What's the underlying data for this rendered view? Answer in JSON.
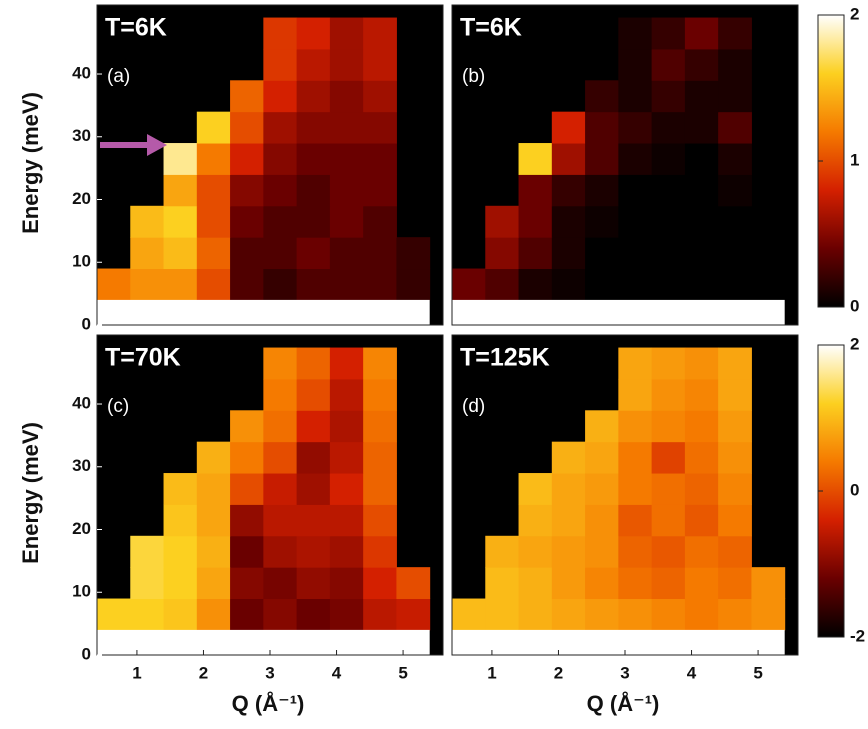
{
  "chart_data": [
    {
      "type": "heatmap",
      "title": "T=6K",
      "annotation": "(a)",
      "ylabel": "Energy (meV)",
      "x": [
        0.65,
        1.15,
        1.65,
        2.15,
        2.65,
        3.15,
        3.65,
        4.15,
        4.65,
        5.15
      ],
      "y": [
        6.5,
        11.5,
        16.5,
        21.5,
        26.5,
        31.5,
        36.5,
        41.5,
        46.5
      ],
      "z": [
        [
          1.2,
          1.3,
          1.3,
          1.0,
          0.3,
          0.2,
          0.3,
          0.3,
          0.3,
          0.2
        ],
        [
          null,
          1.4,
          1.5,
          1.1,
          0.3,
          0.3,
          0.4,
          0.3,
          0.3,
          0.2
        ],
        [
          null,
          1.5,
          1.6,
          1.0,
          0.4,
          0.3,
          0.3,
          0.4,
          0.3,
          null
        ],
        [
          null,
          null,
          1.4,
          1.0,
          0.5,
          0.4,
          0.3,
          0.4,
          0.4,
          null
        ],
        [
          null,
          null,
          1.8,
          1.2,
          0.8,
          0.5,
          0.4,
          0.4,
          0.4,
          null
        ],
        [
          null,
          null,
          null,
          1.6,
          1.0,
          0.6,
          0.5,
          0.5,
          0.5,
          null
        ],
        [
          null,
          null,
          null,
          null,
          1.1,
          0.8,
          0.6,
          0.5,
          0.6,
          null
        ],
        [
          null,
          null,
          null,
          null,
          null,
          0.9,
          0.7,
          0.6,
          0.7,
          null
        ],
        [
          null,
          null,
          null,
          null,
          null,
          0.9,
          0.8,
          0.6,
          0.7,
          null
        ]
      ],
      "xlim": [
        0.4,
        5.6
      ],
      "ylim": [
        0,
        51
      ],
      "yticks": [
        0,
        10,
        20,
        30,
        40
      ],
      "zlim": [
        0,
        2
      ],
      "zticks": [
        0,
        1,
        2
      ],
      "colorbar": true,
      "arrow_color": "#b55aa9",
      "colormap": [
        "#000000",
        "#6a0000",
        "#d42000",
        "#f57a00",
        "#fcd020",
        "#ffffff"
      ]
    },
    {
      "type": "heatmap",
      "title": "T=6K",
      "annotation": "(b)",
      "x": [
        0.65,
        1.15,
        1.65,
        2.15,
        2.65,
        3.15,
        3.65,
        4.15,
        4.65,
        5.15
      ],
      "y": [
        6.5,
        11.5,
        16.5,
        21.5,
        26.5,
        31.5,
        36.5,
        41.5,
        46.5
      ],
      "z": [
        [
          0.4,
          0.3,
          0.1,
          0.05,
          0,
          0,
          0,
          0,
          0,
          0
        ],
        [
          null,
          0.5,
          0.3,
          0.1,
          0,
          0,
          0,
          0,
          0,
          0
        ],
        [
          null,
          0.6,
          0.4,
          0.1,
          0.05,
          0,
          0,
          0,
          0,
          null
        ],
        [
          null,
          null,
          0.4,
          0.2,
          0.1,
          0,
          0,
          0,
          0.05,
          null
        ],
        [
          null,
          null,
          1.6,
          0.6,
          0.3,
          0.1,
          0.05,
          0,
          0.1,
          null
        ],
        [
          null,
          null,
          null,
          0.8,
          0.3,
          0.2,
          0.1,
          0.1,
          0.3,
          null
        ],
        [
          null,
          null,
          null,
          null,
          0.2,
          0.1,
          0.2,
          0.1,
          0.1,
          null
        ],
        [
          null,
          null,
          null,
          null,
          null,
          0.1,
          0.3,
          0.2,
          0.1,
          null
        ],
        [
          null,
          null,
          null,
          null,
          null,
          0.1,
          0.2,
          0.4,
          0.2,
          null
        ]
      ],
      "xlim": [
        0.4,
        5.6
      ],
      "ylim": [
        0,
        51
      ],
      "zlim": [
        0,
        2
      ],
      "colormap": [
        "#000000",
        "#6a0000",
        "#d42000",
        "#f57a00",
        "#fcd020",
        "#ffffff"
      ]
    },
    {
      "type": "heatmap",
      "title": "T=70K",
      "annotation": "(c)",
      "ylabel": "Energy (meV)",
      "xlabel": "Q (Å⁻¹)",
      "x": [
        0.65,
        1.15,
        1.65,
        2.15,
        2.65,
        3.15,
        3.65,
        4.15,
        4.65,
        5.15
      ],
      "y": [
        6.5,
        11.5,
        16.5,
        21.5,
        26.5,
        31.5,
        36.5,
        41.5,
        46.5
      ],
      "z": [
        [
          1.2,
          1.2,
          1.1,
          0.6,
          -1.2,
          -1.0,
          -1.2,
          -1.1,
          -0.6,
          -0.5
        ],
        [
          null,
          1.3,
          1.2,
          0.8,
          -1.0,
          -1.1,
          -0.9,
          -1.0,
          -0.4,
          0.0
        ],
        [
          null,
          1.3,
          1.2,
          0.9,
          -1.2,
          -0.8,
          -0.7,
          -0.8,
          -0.2,
          null
        ],
        [
          null,
          null,
          1.1,
          0.8,
          -0.9,
          -0.6,
          -0.6,
          -0.6,
          0.0,
          null
        ],
        [
          null,
          null,
          1.0,
          0.8,
          0.0,
          -0.5,
          -0.8,
          -0.4,
          0.2,
          null
        ],
        [
          null,
          null,
          null,
          0.9,
          0.4,
          0.0,
          -0.9,
          -0.6,
          0.2,
          null
        ],
        [
          null,
          null,
          null,
          null,
          0.6,
          0.3,
          -0.4,
          -0.7,
          0.3,
          null
        ],
        [
          null,
          null,
          null,
          null,
          null,
          0.4,
          0.0,
          -0.6,
          0.4,
          null
        ],
        [
          null,
          null,
          null,
          null,
          null,
          0.5,
          0.2,
          -0.4,
          0.5,
          null
        ]
      ],
      "xlim": [
        0.4,
        5.6
      ],
      "ylim": [
        0,
        51
      ],
      "xticks": [
        1,
        2,
        3,
        4,
        5
      ],
      "yticks": [
        0,
        10,
        20,
        30,
        40
      ],
      "zlim": [
        -2,
        2
      ],
      "zticks": [
        -2,
        0,
        2
      ],
      "colorbar": true,
      "colormap": [
        "#000000",
        "#6a0000",
        "#d42000",
        "#f57a00",
        "#fcd020",
        "#ffffff"
      ]
    },
    {
      "type": "heatmap",
      "title": "T=125K",
      "annotation": "(d)",
      "xlabel": "Q (Å⁻¹)",
      "x": [
        0.65,
        1.15,
        1.65,
        2.15,
        2.65,
        3.15,
        3.65,
        4.15,
        4.65,
        5.15
      ],
      "y": [
        6.5,
        11.5,
        16.5,
        21.5,
        26.5,
        31.5,
        36.5,
        41.5,
        46.5
      ],
      "z": [
        [
          1.0,
          1.0,
          0.9,
          0.8,
          0.7,
          0.6,
          0.5,
          0.4,
          0.5,
          0.6
        ],
        [
          null,
          1.0,
          0.9,
          0.7,
          0.5,
          0.3,
          0.2,
          0.4,
          0.3,
          0.6
        ],
        [
          null,
          0.9,
          0.8,
          0.7,
          0.6,
          0.2,
          0.1,
          0.3,
          0.2,
          null
        ],
        [
          null,
          null,
          0.9,
          0.8,
          0.6,
          0.1,
          0.3,
          0.1,
          0.4,
          null
        ],
        [
          null,
          null,
          1.0,
          0.8,
          0.7,
          0.4,
          0.3,
          0.2,
          0.5,
          null
        ],
        [
          null,
          null,
          null,
          0.9,
          0.8,
          0.4,
          -0.1,
          0.3,
          0.6,
          null
        ],
        [
          null,
          null,
          null,
          null,
          0.9,
          0.6,
          0.5,
          0.4,
          0.7,
          null
        ],
        [
          null,
          null,
          null,
          null,
          null,
          0.8,
          0.6,
          0.5,
          0.8,
          null
        ],
        [
          null,
          null,
          null,
          null,
          null,
          0.8,
          0.7,
          0.6,
          0.8,
          null
        ]
      ],
      "xlim": [
        0.4,
        5.6
      ],
      "ylim": [
        0,
        51
      ],
      "xticks": [
        1,
        2,
        3,
        4,
        5
      ],
      "zlim": [
        -2,
        2
      ],
      "colormap": [
        "#000000",
        "#6a0000",
        "#d42000",
        "#f57a00",
        "#fcd020",
        "#ffffff"
      ]
    }
  ]
}
